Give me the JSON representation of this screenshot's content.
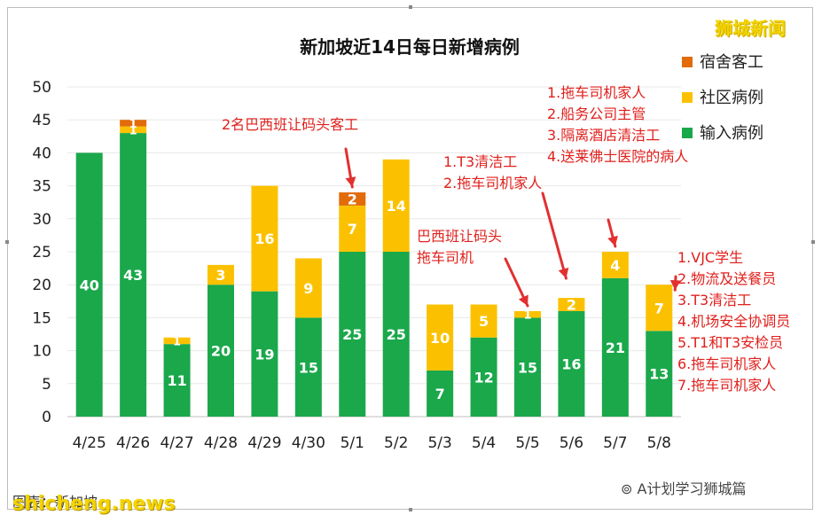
{
  "watermarks": {
    "top_right": "狮城新闻",
    "bottom_left": "shicheng.news",
    "bottom_right": "A计划学习狮城篇"
  },
  "footnote_left": "图表：新加坡",
  "colors": {
    "imported": "#1aa84b",
    "community": "#fbc100",
    "dormitory": "#e26b0a",
    "annotation": "#e0201c",
    "arrow": "#e23030"
  },
  "chart_data": {
    "type": "bar",
    "stacked": true,
    "title": "新加坡近14日每日新增病例",
    "categories": [
      "4/25",
      "4/26",
      "4/27",
      "4/28",
      "4/29",
      "4/30",
      "5/1",
      "5/2",
      "5/3",
      "5/4",
      "5/5",
      "5/6",
      "5/7",
      "5/8"
    ],
    "series": [
      {
        "name": "输入病例",
        "color_key": "imported",
        "values": [
          40,
          43,
          11,
          20,
          19,
          15,
          25,
          25,
          7,
          12,
          15,
          16,
          21,
          13
        ]
      },
      {
        "name": "社区病例",
        "color_key": "community",
        "values": [
          0,
          1,
          1,
          3,
          16,
          9,
          7,
          14,
          10,
          5,
          1,
          2,
          4,
          7
        ]
      },
      {
        "name": "宿舍客工",
        "color_key": "dormitory",
        "values": [
          0,
          1,
          0,
          0,
          0,
          0,
          2,
          0,
          0,
          0,
          0,
          0,
          0,
          0
        ]
      }
    ],
    "ylim": [
      0,
      50
    ],
    "yticks": [
      0,
      5,
      10,
      15,
      20,
      25,
      30,
      35,
      40,
      45,
      50
    ],
    "legend_position": "top-right",
    "legend_order": [
      "宿舍客工",
      "社区病例",
      "输入病例"
    ],
    "grid": true,
    "annotations": [
      {
        "lines": [
          "2名巴西班让码头客工"
        ],
        "target": "5/1"
      },
      {
        "lines": [
          "1.T3清洁工",
          "2.拖车司机家人"
        ],
        "target": "5/6"
      },
      {
        "lines": [
          "巴西班让码头",
          "拖车司机"
        ],
        "target": "5/5"
      },
      {
        "lines": [
          "1.拖车司机家人",
          "2.船务公司主管",
          "3.隔离酒店清洁工",
          "4.送莱佛士医院的病人"
        ],
        "target": "5/7"
      },
      {
        "lines": [
          "1.VJC学生",
          "2.物流及送餐员",
          "3.T3清洁工",
          "4.机场安全协调员",
          "5.T1和T3安检员",
          "6.拖车司机家人",
          "7.拖车司机家人"
        ],
        "target": "5/8"
      }
    ]
  }
}
